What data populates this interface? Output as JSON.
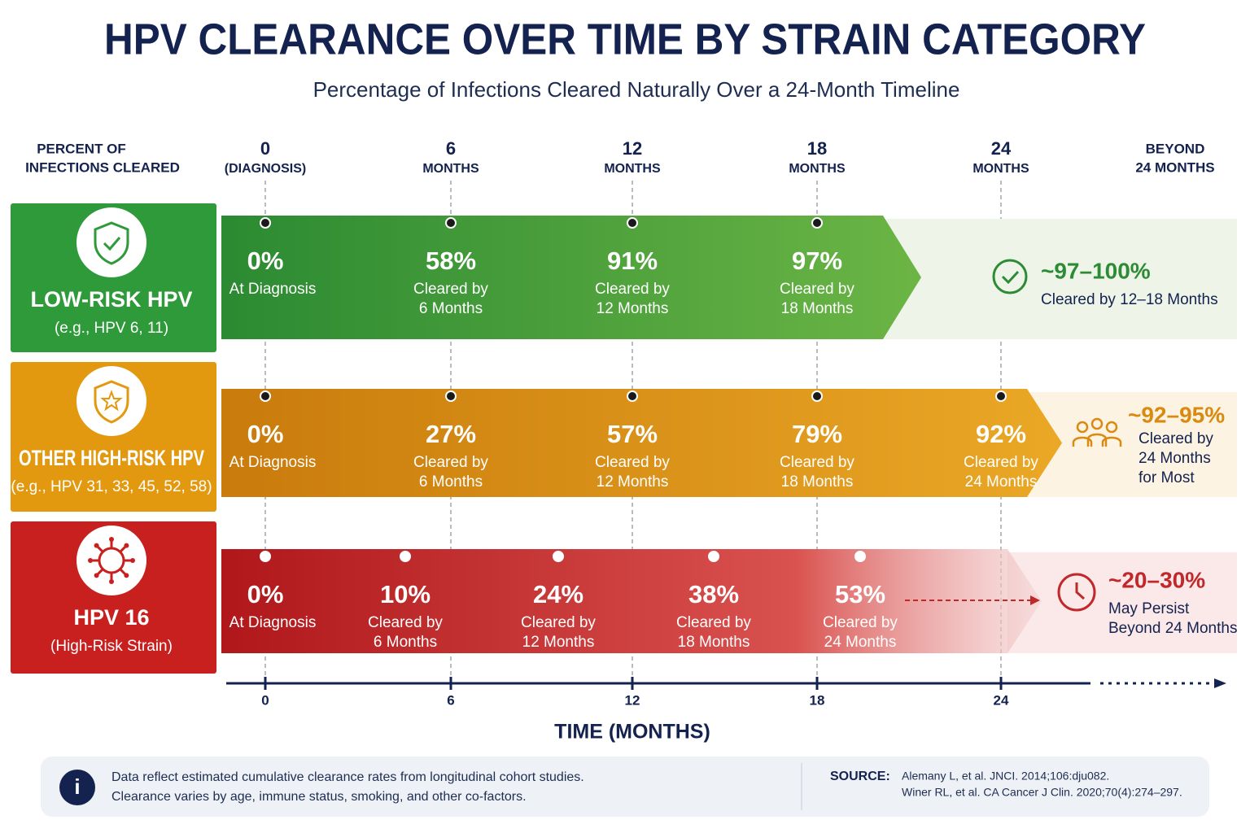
{
  "header": {
    "title": "HPV CLEARANCE OVER TIME BY STRAIN CATEGORY",
    "subtitle": "Percentage of Infections Cleared Naturally Over a 24-Month Timeline"
  },
  "row_header": [
    "PERCENT OF",
    "INFECTIONS CLEARED"
  ],
  "time_columns": [
    {
      "top": "0",
      "bottom": "(DIAGNOSIS)"
    },
    {
      "top": "6",
      "bottom": "MONTHS"
    },
    {
      "top": "12",
      "bottom": "MONTHS"
    },
    {
      "top": "18",
      "bottom": "MONTHS"
    },
    {
      "top": "24",
      "bottom": "MONTHS"
    }
  ],
  "beyond_column": [
    "BEYOND",
    "24 MONTHS"
  ],
  "rows": [
    {
      "name": "LOW-RISK HPV",
      "example": "(e.g., HPV 6, 11)",
      "milestones": [
        {
          "value": "0%",
          "label": [
            "At Diagnosis"
          ]
        },
        {
          "value": "58%",
          "label": [
            "Cleared by",
            "6 Months"
          ]
        },
        {
          "value": "91%",
          "label": [
            "Cleared by",
            "12 Months"
          ]
        },
        {
          "value": "97%",
          "label": [
            "Cleared by",
            "18 Months"
          ]
        }
      ],
      "outcome": {
        "value": "~97–100%",
        "label": [
          "Cleared by 12–18 Months"
        ]
      }
    },
    {
      "name": "OTHER HIGH-RISK HPV",
      "example": "(e.g., HPV 31, 33, 45, 52, 58)",
      "milestones": [
        {
          "value": "0%",
          "label": [
            "At Diagnosis"
          ]
        },
        {
          "value": "27%",
          "label": [
            "Cleared by",
            "6 Months"
          ]
        },
        {
          "value": "57%",
          "label": [
            "Cleared by",
            "12 Months"
          ]
        },
        {
          "value": "79%",
          "label": [
            "Cleared by",
            "18 Months"
          ]
        },
        {
          "value": "92%",
          "label": [
            "Cleared by",
            "24 Months"
          ]
        }
      ],
      "outcome": {
        "value": "~92–95%",
        "label": [
          "Cleared by",
          "24 Months",
          "for Most"
        ]
      }
    },
    {
      "name": "HPV 16",
      "example": "(High-Risk Strain)",
      "milestones": [
        {
          "value": "0%",
          "label": [
            "At Diagnosis"
          ]
        },
        {
          "value": "10%",
          "label": [
            "Cleared by",
            "6 Months"
          ]
        },
        {
          "value": "24%",
          "label": [
            "Cleared by",
            "12 Months"
          ]
        },
        {
          "value": "38%",
          "label": [
            "Cleared by",
            "18 Months"
          ]
        },
        {
          "value": "53%",
          "label": [
            "Cleared by",
            "24 Months"
          ]
        }
      ],
      "outcome": {
        "value": "~20–30%",
        "label": [
          "May Persist",
          "Beyond 24 Months"
        ]
      }
    }
  ],
  "axis": {
    "ticks": [
      "0",
      "6",
      "12",
      "18",
      "24"
    ],
    "title": "TIME (MONTHS)"
  },
  "footer": {
    "note": [
      "Data reflect estimated cumulative clearance rates from longitudinal cohort studies.",
      "Clearance varies by age, immune status, smoking, and other co-factors."
    ],
    "source_label": "SOURCE:",
    "sources": [
      "Alemany L, et al. JNCI. 2014;106:dju082.",
      "Winer RL, et al. CA Cancer J Clin. 2020;70(4):274–297."
    ]
  }
}
